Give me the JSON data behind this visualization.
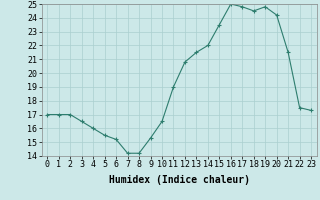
{
  "xlabel": "Humidex (Indice chaleur)",
  "x": [
    0,
    1,
    2,
    3,
    4,
    5,
    6,
    7,
    8,
    9,
    10,
    11,
    12,
    13,
    14,
    15,
    16,
    17,
    18,
    19,
    20,
    21,
    22,
    23
  ],
  "y": [
    17,
    17,
    17,
    16.5,
    16,
    15.5,
    15.2,
    14.2,
    14.2,
    15.3,
    16.5,
    19,
    20.8,
    21.5,
    22,
    23.5,
    25,
    24.8,
    24.5,
    24.8,
    24.2,
    21.5,
    17.5,
    17.3
  ],
  "ylim_min": 14,
  "ylim_max": 25,
  "yticks": [
    14,
    15,
    16,
    17,
    18,
    19,
    20,
    21,
    22,
    23,
    24,
    25
  ],
  "xticks": [
    0,
    1,
    2,
    3,
    4,
    5,
    6,
    7,
    8,
    9,
    10,
    11,
    12,
    13,
    14,
    15,
    16,
    17,
    18,
    19,
    20,
    21,
    22,
    23
  ],
  "line_color": "#2e7d6e",
  "marker": "+",
  "bg_color": "#cce8e8",
  "grid_color": "#aacfcf",
  "tick_fontsize": 6,
  "label_fontsize": 7
}
